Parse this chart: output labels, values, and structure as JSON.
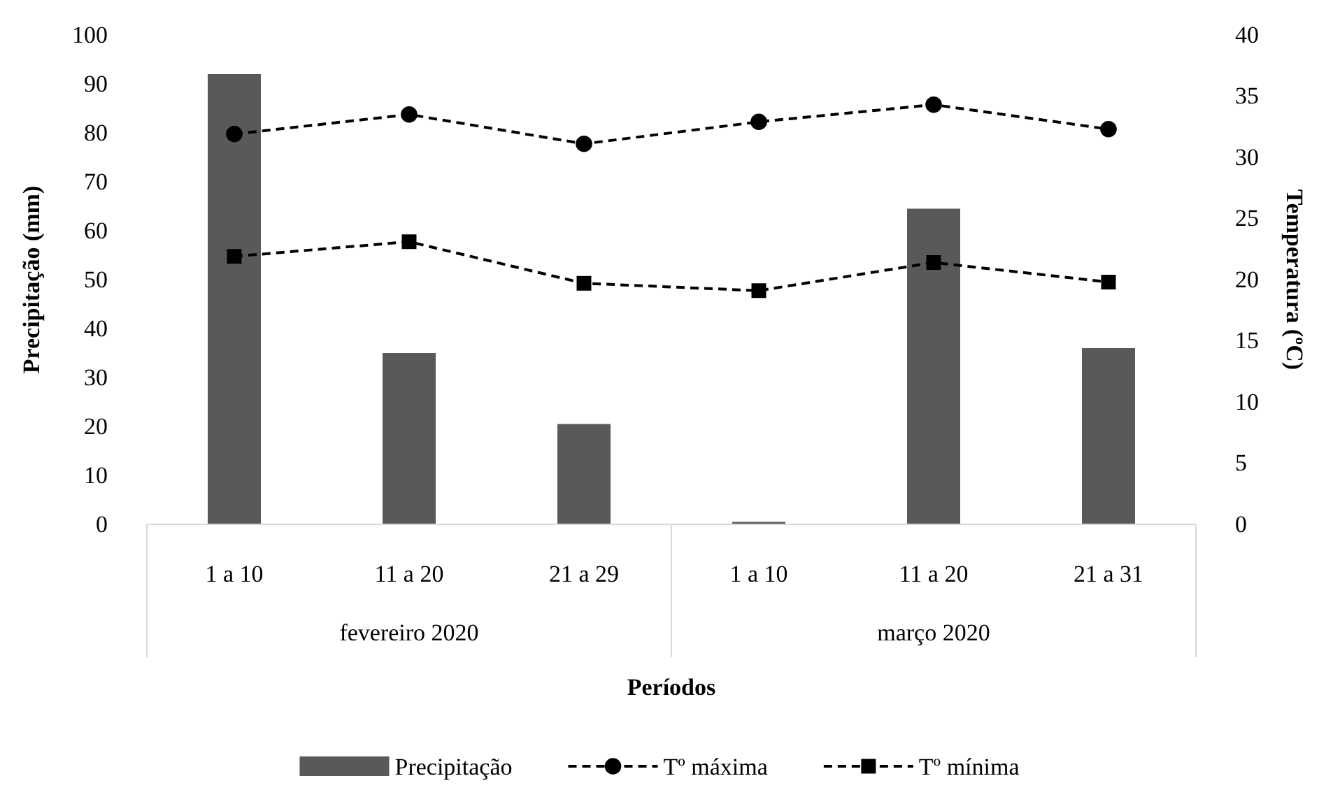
{
  "chart_data": {
    "type": "bar",
    "xlabel": "Períodos",
    "ylabel": "Precipitação (mm)",
    "y2label": "Temperatura (ºC)",
    "categories": [
      "1 a 10",
      "11 a 20",
      "21 a 29",
      "1 a 10",
      "11 a 20",
      "21 a 31"
    ],
    "annotations": [
      "fevereiro 2020",
      "março 2020"
    ],
    "series": [
      {
        "name": "Precipitação",
        "color": "#595959",
        "values": [
          92,
          35,
          20.5,
          0.5,
          64.5,
          36
        ]
      },
      {
        "name": "Tº máxima",
        "type": "line",
        "axis": "y2",
        "color": "#000000",
        "marker": "circle",
        "line_style": "dashed",
        "values": [
          31.9,
          33.5,
          31.1,
          32.9,
          34.3,
          32.3
        ]
      },
      {
        "name": "Tº mínima",
        "type": "line",
        "axis": "y2",
        "color": "#000000",
        "marker": "square",
        "line_style": "dashed",
        "values": [
          21.9,
          23.1,
          19.7,
          19.1,
          21.4,
          19.8
        ]
      }
    ],
    "ylim": [
      0,
      100
    ],
    "yticks": [
      0,
      10,
      20,
      30,
      40,
      50,
      60,
      70,
      80,
      90,
      100
    ],
    "y2lim": [
      0,
      40
    ],
    "y2ticks": [
      0,
      5,
      10,
      15,
      20,
      25,
      30,
      35,
      40
    ],
    "grid": false,
    "legend": "bottom"
  }
}
